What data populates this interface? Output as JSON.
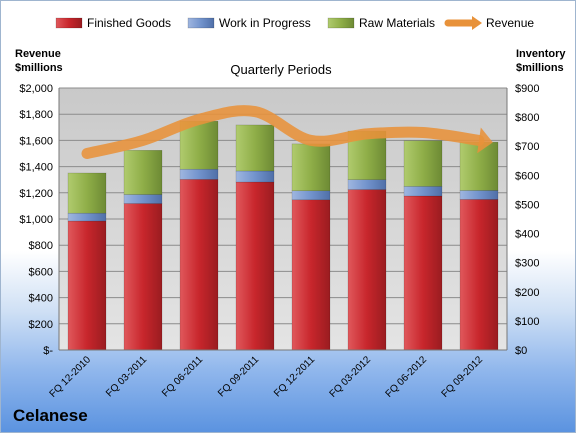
{
  "company": "Celanese",
  "chart_data": {
    "type": "bar",
    "stacked": true,
    "title": "Quarterly Periods",
    "categories": [
      "FQ 12-2010",
      "FQ 03-2011",
      "FQ 06-2011",
      "FQ 09-2011",
      "FQ 12-2011",
      "FQ 03-2012",
      "FQ 06-2012",
      "FQ 09-2012"
    ],
    "left_axis": {
      "label_line1": "Revenue",
      "label_line2": "$millions",
      "ylim": [
        0,
        2000
      ],
      "ticks": [
        "$-",
        "$200",
        "$400",
        "$600",
        "$800",
        "$1,000",
        "$1,200",
        "$1,400",
        "$1,600",
        "$1,800",
        "$2,000"
      ]
    },
    "right_axis": {
      "label_line1": "Inventory",
      "label_line2": "$millions",
      "ylim": [
        0,
        900
      ],
      "ticks": [
        "$0",
        "$100",
        "$200",
        "$300",
        "$400",
        "$500",
        "$600",
        "$700",
        "$800",
        "$900"
      ]
    },
    "series": [
      {
        "name": "Finished Goods",
        "axis": "right",
        "color": "#c0272d",
        "values": [
          443,
          503,
          586,
          577,
          516,
          551,
          529,
          517
        ]
      },
      {
        "name": "Work in Progress",
        "axis": "right",
        "color": "#6f8fc7",
        "values": [
          27,
          31,
          35,
          38,
          31,
          34,
          33,
          31
        ]
      },
      {
        "name": "Raw Materials",
        "axis": "right",
        "color": "#8fb04a",
        "values": [
          138,
          152,
          165,
          158,
          161,
          167,
          157,
          166
        ]
      },
      {
        "name": "Revenue",
        "axis": "left",
        "type": "line",
        "color": "#e8923a",
        "values": [
          1500,
          1600,
          1760,
          1820,
          1600,
          1650,
          1660,
          1600
        ]
      }
    ],
    "grid": true,
    "legend_position": "top"
  }
}
